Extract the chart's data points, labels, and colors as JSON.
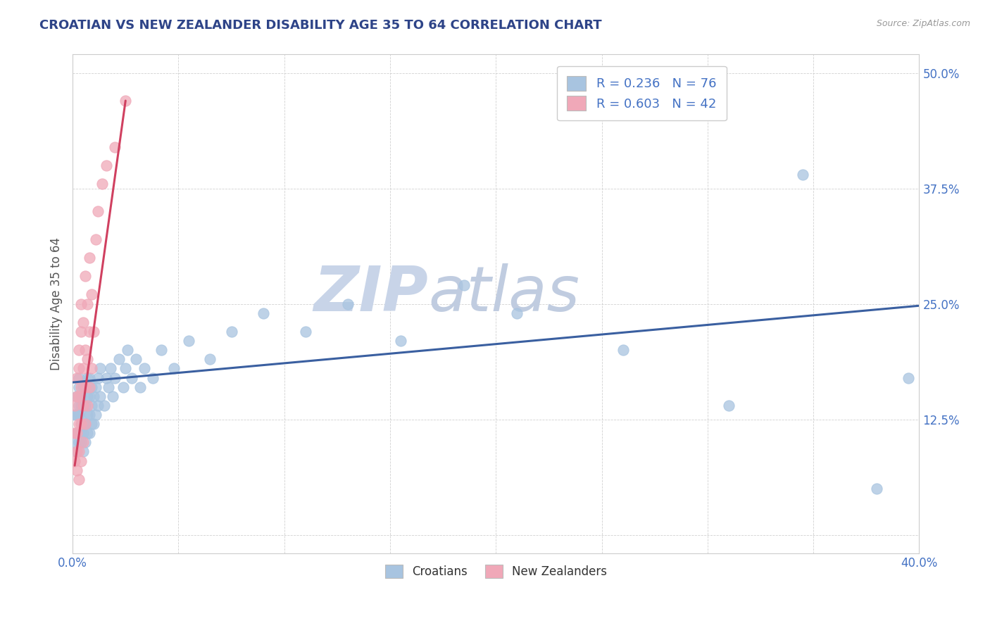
{
  "title": "CROATIAN VS NEW ZEALANDER DISABILITY AGE 35 TO 64 CORRELATION CHART",
  "source": "Source: ZipAtlas.com",
  "ylabel": "Disability Age 35 to 64",
  "xlim": [
    0.0,
    0.4
  ],
  "ylim": [
    -0.02,
    0.52
  ],
  "xticks": [
    0.0,
    0.05,
    0.1,
    0.15,
    0.2,
    0.25,
    0.3,
    0.35,
    0.4
  ],
  "yticks": [
    0.0,
    0.125,
    0.25,
    0.375,
    0.5
  ],
  "blue_R": 0.236,
  "blue_N": 76,
  "pink_R": 0.603,
  "pink_N": 42,
  "blue_color": "#a8c4e0",
  "pink_color": "#f0a8b8",
  "blue_line_color": "#3a5fa0",
  "pink_line_color": "#d04060",
  "title_color": "#2e4488",
  "tick_color": "#4472c4",
  "legend_R_color": "#4472c4",
  "watermark_zip": "ZIP",
  "watermark_atlas": "atlas",
  "watermark_color_zip": "#c8d4e8",
  "watermark_color_atlas": "#c0cce0",
  "blue_x": [
    0.001,
    0.001,
    0.002,
    0.002,
    0.002,
    0.002,
    0.003,
    0.003,
    0.003,
    0.003,
    0.003,
    0.003,
    0.004,
    0.004,
    0.004,
    0.004,
    0.004,
    0.005,
    0.005,
    0.005,
    0.005,
    0.005,
    0.006,
    0.006,
    0.006,
    0.006,
    0.007,
    0.007,
    0.007,
    0.007,
    0.008,
    0.008,
    0.008,
    0.008,
    0.009,
    0.009,
    0.009,
    0.01,
    0.01,
    0.011,
    0.011,
    0.012,
    0.012,
    0.013,
    0.013,
    0.015,
    0.016,
    0.017,
    0.018,
    0.019,
    0.02,
    0.022,
    0.024,
    0.025,
    0.026,
    0.028,
    0.03,
    0.032,
    0.034,
    0.038,
    0.042,
    0.048,
    0.055,
    0.065,
    0.075,
    0.09,
    0.11,
    0.13,
    0.155,
    0.185,
    0.21,
    0.26,
    0.31,
    0.345,
    0.38,
    0.395
  ],
  "blue_y": [
    0.1,
    0.13,
    0.09,
    0.11,
    0.13,
    0.15,
    0.1,
    0.11,
    0.13,
    0.14,
    0.16,
    0.17,
    0.1,
    0.11,
    0.12,
    0.14,
    0.15,
    0.09,
    0.11,
    0.12,
    0.14,
    0.16,
    0.1,
    0.12,
    0.14,
    0.16,
    0.11,
    0.13,
    0.15,
    0.17,
    0.11,
    0.13,
    0.15,
    0.17,
    0.12,
    0.14,
    0.16,
    0.12,
    0.15,
    0.13,
    0.16,
    0.14,
    0.17,
    0.15,
    0.18,
    0.14,
    0.17,
    0.16,
    0.18,
    0.15,
    0.17,
    0.19,
    0.16,
    0.18,
    0.2,
    0.17,
    0.19,
    0.16,
    0.18,
    0.17,
    0.2,
    0.18,
    0.21,
    0.19,
    0.22,
    0.24,
    0.22,
    0.25,
    0.21,
    0.27,
    0.24,
    0.2,
    0.14,
    0.39,
    0.05,
    0.17
  ],
  "pink_x": [
    0.001,
    0.001,
    0.001,
    0.002,
    0.002,
    0.002,
    0.002,
    0.002,
    0.003,
    0.003,
    0.003,
    0.003,
    0.003,
    0.003,
    0.004,
    0.004,
    0.004,
    0.004,
    0.004,
    0.005,
    0.005,
    0.005,
    0.005,
    0.006,
    0.006,
    0.006,
    0.006,
    0.007,
    0.007,
    0.007,
    0.008,
    0.008,
    0.008,
    0.009,
    0.009,
    0.01,
    0.011,
    0.012,
    0.014,
    0.016,
    0.02,
    0.025
  ],
  "pink_y": [
    0.08,
    0.11,
    0.14,
    0.07,
    0.09,
    0.11,
    0.15,
    0.17,
    0.06,
    0.09,
    0.12,
    0.15,
    0.18,
    0.2,
    0.08,
    0.12,
    0.16,
    0.22,
    0.25,
    0.1,
    0.14,
    0.18,
    0.23,
    0.12,
    0.16,
    0.2,
    0.28,
    0.14,
    0.19,
    0.25,
    0.16,
    0.22,
    0.3,
    0.18,
    0.26,
    0.22,
    0.32,
    0.35,
    0.38,
    0.4,
    0.42,
    0.47
  ],
  "blue_trend_x": [
    0.0,
    0.4
  ],
  "blue_trend_y": [
    0.165,
    0.248
  ],
  "pink_trend_x": [
    0.001,
    0.025
  ],
  "pink_trend_y": [
    0.075,
    0.47
  ]
}
